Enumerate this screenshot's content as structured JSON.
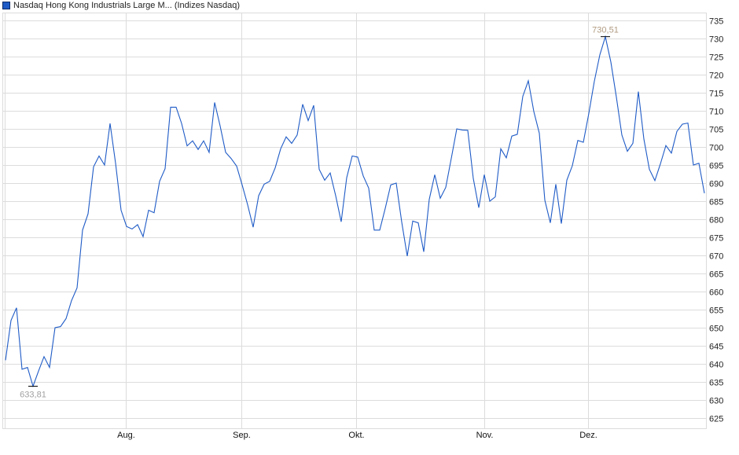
{
  "legend": {
    "label": "Nasdaq Hong Kong Industrials Large M... (Indizes Nasdaq)",
    "color": "#1f5bc6"
  },
  "chart_data": {
    "type": "line",
    "title": "",
    "xlabel": "",
    "ylabel": "",
    "ylim": [
      625,
      735
    ],
    "y_ticks": [
      625,
      630,
      635,
      640,
      645,
      650,
      655,
      660,
      665,
      670,
      675,
      680,
      685,
      690,
      695,
      700,
      705,
      710,
      715,
      720,
      725,
      730,
      735
    ],
    "x_ticks": [
      {
        "label": "Aug.",
        "index": 21.9
      },
      {
        "label": "Sep.",
        "index": 42.9
      },
      {
        "label": "Okt.",
        "index": 63.7
      },
      {
        "label": "Nov.",
        "index": 87.0
      },
      {
        "label": "Dez.",
        "index": 105.9
      }
    ],
    "grid": true,
    "y_axis_position": "right",
    "series": [
      {
        "color": "#1f5bc6",
        "values": [
          641,
          652,
          655.5,
          638.5,
          639,
          633.81,
          638,
          642,
          639,
          650,
          650.3,
          652.5,
          657.5,
          661,
          677,
          681.5,
          694.5,
          697.5,
          695,
          706.5,
          695.5,
          682.5,
          678,
          677.3,
          678.5,
          675.2,
          682.5,
          681.8,
          690.5,
          694,
          711,
          711,
          706.5,
          700.3,
          701.7,
          699.3,
          701.7,
          698.5,
          712.3,
          705.8,
          698.5,
          696.8,
          694.7,
          689.5,
          684,
          677.8,
          686.5,
          689.7,
          690.5,
          694.2,
          699.5,
          702.8,
          701,
          703.3,
          711.8,
          707.3,
          711.5,
          693.8,
          690.8,
          692.8,
          686.5,
          679.3,
          691.5,
          697.5,
          697.2,
          692,
          688.6,
          677,
          677,
          683,
          689.5,
          690,
          679.2,
          669.8,
          679.5,
          679,
          671,
          685.5,
          692.3,
          685.8,
          688.8,
          696.8,
          705,
          704.7,
          704.6,
          691.3,
          683.2,
          692.3,
          685,
          686.2,
          699.5,
          697,
          703,
          703.5,
          714,
          718.3,
          709.8,
          703.8,
          685.3,
          679,
          689.7,
          678.8,
          690.8,
          694.8,
          701.8,
          701.3,
          709.3,
          718.2,
          725.5,
          730.51,
          723.5,
          713.8,
          703.3,
          698.8,
          701,
          715.3,
          702.2,
          693.8,
          690.7,
          695.3,
          700.4,
          698.3,
          704.3,
          706.3,
          706.6,
          695,
          695.5,
          687.2
        ]
      }
    ],
    "annotations": [
      {
        "label": "633,81",
        "value": 633.81,
        "type": "min",
        "color": "#a0a0a0"
      },
      {
        "label": "730,51",
        "value": 730.51,
        "type": "max",
        "color": "#b09a80"
      }
    ]
  }
}
